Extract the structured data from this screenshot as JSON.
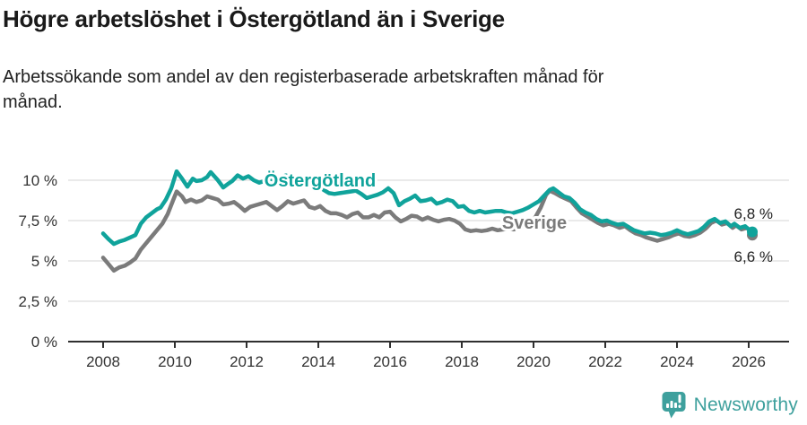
{
  "footer": {
    "brand": "Newsworthy",
    "brand_color": "#3EA09D",
    "logo_icon": "newsworthy-speech-bubble-bar-chart-icon"
  },
  "chart_data": {
    "type": "line",
    "title": "Högre arbetslöshet i Östergötland än i Sverige",
    "subtitle": "Arbetssökande som andel av den registerbaserade arbetskraften månad för månad.",
    "grid": "horizontal",
    "style": {
      "teal": "#10A39B",
      "gray": "#7B7B7B",
      "grid_color": "#E3E3E3",
      "axis_color": "#2F2F2F",
      "tick_text_color": "#333333",
      "end_label_color": "#222222"
    },
    "x_axis": {
      "ticks": [
        2008,
        2010,
        2012,
        2014,
        2016,
        2018,
        2020,
        2022,
        2024,
        2026
      ],
      "tick_labels": [
        "2008",
        "2010",
        "2012",
        "2014",
        "2016",
        "2018",
        "2020",
        "2022",
        "2024",
        "2026"
      ],
      "range": [
        2007.0,
        2027.1
      ]
    },
    "y_axis": {
      "ticks": [
        0,
        2.5,
        5,
        7.5,
        10
      ],
      "tick_labels": [
        "0 %",
        "2,5 %",
        "5 %",
        "7,5 %",
        "10 %"
      ],
      "range": [
        0,
        12.7
      ]
    },
    "series": [
      {
        "key": "sverige",
        "name": "Sverige",
        "color": "#7B7B7B",
        "end_label": "6,6 %",
        "points": [
          [
            2008.0,
            5.2
          ],
          [
            2008.15,
            4.8
          ],
          [
            2008.3,
            4.4
          ],
          [
            2008.45,
            4.6
          ],
          [
            2008.6,
            4.7
          ],
          [
            2008.75,
            4.9
          ],
          [
            2008.9,
            5.15
          ],
          [
            2009.05,
            5.7
          ],
          [
            2009.2,
            6.1
          ],
          [
            2009.35,
            6.5
          ],
          [
            2009.5,
            6.9
          ],
          [
            2009.65,
            7.3
          ],
          [
            2009.8,
            7.9
          ],
          [
            2009.95,
            8.75
          ],
          [
            2010.05,
            9.3
          ],
          [
            2010.2,
            9.0
          ],
          [
            2010.3,
            8.65
          ],
          [
            2010.45,
            8.8
          ],
          [
            2010.6,
            8.65
          ],
          [
            2010.75,
            8.75
          ],
          [
            2010.9,
            9.0
          ],
          [
            2011.05,
            8.9
          ],
          [
            2011.2,
            8.8
          ],
          [
            2011.35,
            8.5
          ],
          [
            2011.5,
            8.55
          ],
          [
            2011.65,
            8.65
          ],
          [
            2011.8,
            8.4
          ],
          [
            2011.95,
            8.1
          ],
          [
            2012.1,
            8.35
          ],
          [
            2012.25,
            8.45
          ],
          [
            2012.4,
            8.55
          ],
          [
            2012.55,
            8.65
          ],
          [
            2012.7,
            8.4
          ],
          [
            2012.85,
            8.15
          ],
          [
            2013.0,
            8.4
          ],
          [
            2013.15,
            8.7
          ],
          [
            2013.3,
            8.55
          ],
          [
            2013.45,
            8.65
          ],
          [
            2013.6,
            8.75
          ],
          [
            2013.75,
            8.35
          ],
          [
            2013.9,
            8.25
          ],
          [
            2014.05,
            8.4
          ],
          [
            2014.2,
            8.1
          ],
          [
            2014.35,
            7.95
          ],
          [
            2014.5,
            7.95
          ],
          [
            2014.65,
            7.85
          ],
          [
            2014.8,
            7.7
          ],
          [
            2014.95,
            7.9
          ],
          [
            2015.1,
            8.0
          ],
          [
            2015.25,
            7.7
          ],
          [
            2015.4,
            7.7
          ],
          [
            2015.55,
            7.85
          ],
          [
            2015.7,
            7.7
          ],
          [
            2015.85,
            8.0
          ],
          [
            2016.0,
            8.05
          ],
          [
            2016.15,
            7.7
          ],
          [
            2016.3,
            7.45
          ],
          [
            2016.45,
            7.6
          ],
          [
            2016.6,
            7.8
          ],
          [
            2016.75,
            7.75
          ],
          [
            2016.9,
            7.55
          ],
          [
            2017.05,
            7.7
          ],
          [
            2017.2,
            7.55
          ],
          [
            2017.35,
            7.45
          ],
          [
            2017.5,
            7.55
          ],
          [
            2017.65,
            7.6
          ],
          [
            2017.8,
            7.5
          ],
          [
            2017.95,
            7.3
          ],
          [
            2018.1,
            6.95
          ],
          [
            2018.25,
            6.85
          ],
          [
            2018.4,
            6.9
          ],
          [
            2018.55,
            6.85
          ],
          [
            2018.7,
            6.9
          ],
          [
            2018.85,
            7.0
          ],
          [
            2019.0,
            6.9
          ],
          [
            2019.15,
            6.95
          ],
          [
            2019.3,
            7.0
          ],
          [
            2019.45,
            6.95
          ],
          [
            2019.6,
            7.05
          ],
          [
            2019.75,
            7.15
          ],
          [
            2019.9,
            7.35
          ],
          [
            2020.05,
            7.7
          ],
          [
            2020.2,
            8.3
          ],
          [
            2020.35,
            9.1
          ],
          [
            2020.45,
            9.35
          ],
          [
            2020.6,
            9.2
          ],
          [
            2020.75,
            9.0
          ],
          [
            2020.9,
            8.85
          ],
          [
            2021.05,
            8.7
          ],
          [
            2021.2,
            8.3
          ],
          [
            2021.35,
            7.95
          ],
          [
            2021.5,
            7.75
          ],
          [
            2021.65,
            7.55
          ],
          [
            2021.8,
            7.35
          ],
          [
            2021.95,
            7.2
          ],
          [
            2022.1,
            7.3
          ],
          [
            2022.25,
            7.2
          ],
          [
            2022.4,
            7.05
          ],
          [
            2022.55,
            7.15
          ],
          [
            2022.7,
            6.9
          ],
          [
            2022.85,
            6.7
          ],
          [
            2023.0,
            6.6
          ],
          [
            2023.15,
            6.45
          ],
          [
            2023.3,
            6.35
          ],
          [
            2023.45,
            6.25
          ],
          [
            2023.6,
            6.35
          ],
          [
            2023.75,
            6.45
          ],
          [
            2023.9,
            6.6
          ],
          [
            2024.05,
            6.7
          ],
          [
            2024.2,
            6.55
          ],
          [
            2024.35,
            6.5
          ],
          [
            2024.5,
            6.6
          ],
          [
            2024.65,
            6.75
          ],
          [
            2024.8,
            7.0
          ],
          [
            2024.95,
            7.35
          ],
          [
            2025.1,
            7.5
          ],
          [
            2025.25,
            7.25
          ],
          [
            2025.4,
            7.35
          ],
          [
            2025.55,
            7.05
          ],
          [
            2025.65,
            7.2
          ],
          [
            2025.8,
            6.95
          ],
          [
            2025.95,
            7.05
          ],
          [
            2026.05,
            6.85
          ],
          [
            2026.1,
            6.6
          ]
        ]
      },
      {
        "key": "ostergotland",
        "name": "Östergötland",
        "color": "#10A39B",
        "end_label": "6,8 %",
        "points": [
          [
            2008.0,
            6.7
          ],
          [
            2008.15,
            6.35
          ],
          [
            2008.3,
            6.05
          ],
          [
            2008.45,
            6.2
          ],
          [
            2008.6,
            6.3
          ],
          [
            2008.75,
            6.45
          ],
          [
            2008.9,
            6.6
          ],
          [
            2009.05,
            7.3
          ],
          [
            2009.2,
            7.7
          ],
          [
            2009.35,
            7.95
          ],
          [
            2009.5,
            8.2
          ],
          [
            2009.6,
            8.3
          ],
          [
            2009.75,
            8.8
          ],
          [
            2009.9,
            9.5
          ],
          [
            2010.05,
            10.55
          ],
          [
            2010.2,
            10.1
          ],
          [
            2010.35,
            9.6
          ],
          [
            2010.5,
            10.1
          ],
          [
            2010.6,
            9.95
          ],
          [
            2010.75,
            10.0
          ],
          [
            2010.9,
            10.2
          ],
          [
            2011.0,
            10.5
          ],
          [
            2011.2,
            10.0
          ],
          [
            2011.35,
            9.55
          ],
          [
            2011.5,
            9.8
          ],
          [
            2011.6,
            9.95
          ],
          [
            2011.75,
            10.3
          ],
          [
            2011.9,
            10.1
          ],
          [
            2012.05,
            10.25
          ],
          [
            2012.2,
            10.0
          ],
          [
            2012.35,
            9.85
          ],
          [
            2012.5,
            9.95
          ],
          [
            2012.65,
            10.1
          ],
          [
            2012.8,
            10.0
          ],
          [
            2012.95,
            10.2
          ],
          [
            2013.1,
            10.3
          ],
          [
            2013.25,
            10.05
          ],
          [
            2013.4,
            9.95
          ],
          [
            2013.55,
            10.05
          ],
          [
            2013.7,
            9.95
          ],
          [
            2013.85,
            9.8
          ],
          [
            2014.0,
            9.65
          ],
          [
            2014.15,
            9.4
          ],
          [
            2014.3,
            9.2
          ],
          [
            2014.45,
            9.15
          ],
          [
            2014.6,
            9.2
          ],
          [
            2014.75,
            9.25
          ],
          [
            2014.9,
            9.3
          ],
          [
            2015.05,
            9.35
          ],
          [
            2015.2,
            9.15
          ],
          [
            2015.35,
            8.9
          ],
          [
            2015.5,
            9.0
          ],
          [
            2015.65,
            9.1
          ],
          [
            2015.8,
            9.25
          ],
          [
            2015.95,
            9.5
          ],
          [
            2016.1,
            9.2
          ],
          [
            2016.25,
            8.45
          ],
          [
            2016.4,
            8.7
          ],
          [
            2016.55,
            8.85
          ],
          [
            2016.7,
            9.05
          ],
          [
            2016.85,
            8.7
          ],
          [
            2017.0,
            8.75
          ],
          [
            2017.15,
            8.85
          ],
          [
            2017.3,
            8.55
          ],
          [
            2017.45,
            8.65
          ],
          [
            2017.6,
            8.8
          ],
          [
            2017.75,
            8.7
          ],
          [
            2017.9,
            8.35
          ],
          [
            2018.05,
            8.4
          ],
          [
            2018.2,
            8.1
          ],
          [
            2018.35,
            8.0
          ],
          [
            2018.5,
            8.1
          ],
          [
            2018.65,
            8.0
          ],
          [
            2018.8,
            8.05
          ],
          [
            2018.95,
            8.1
          ],
          [
            2019.1,
            8.1
          ],
          [
            2019.25,
            8.0
          ],
          [
            2019.4,
            7.95
          ],
          [
            2019.55,
            8.05
          ],
          [
            2019.7,
            8.15
          ],
          [
            2019.85,
            8.3
          ],
          [
            2020.0,
            8.5
          ],
          [
            2020.15,
            8.7
          ],
          [
            2020.3,
            9.05
          ],
          [
            2020.45,
            9.4
          ],
          [
            2020.55,
            9.5
          ],
          [
            2020.7,
            9.25
          ],
          [
            2020.85,
            9.0
          ],
          [
            2021.0,
            8.9
          ],
          [
            2021.15,
            8.6
          ],
          [
            2021.3,
            8.2
          ],
          [
            2021.45,
            8.0
          ],
          [
            2021.6,
            7.85
          ],
          [
            2021.75,
            7.6
          ],
          [
            2021.9,
            7.45
          ],
          [
            2022.05,
            7.5
          ],
          [
            2022.2,
            7.35
          ],
          [
            2022.35,
            7.25
          ],
          [
            2022.5,
            7.3
          ],
          [
            2022.65,
            7.1
          ],
          [
            2022.8,
            6.9
          ],
          [
            2022.95,
            6.8
          ],
          [
            2023.1,
            6.7
          ],
          [
            2023.25,
            6.75
          ],
          [
            2023.4,
            6.7
          ],
          [
            2023.55,
            6.6
          ],
          [
            2023.7,
            6.65
          ],
          [
            2023.85,
            6.75
          ],
          [
            2024.0,
            6.9
          ],
          [
            2024.15,
            6.75
          ],
          [
            2024.3,
            6.65
          ],
          [
            2024.45,
            6.75
          ],
          [
            2024.6,
            6.85
          ],
          [
            2024.75,
            7.1
          ],
          [
            2024.9,
            7.45
          ],
          [
            2025.05,
            7.6
          ],
          [
            2025.2,
            7.35
          ],
          [
            2025.35,
            7.45
          ],
          [
            2025.5,
            7.15
          ],
          [
            2025.6,
            7.3
          ],
          [
            2025.75,
            7.05
          ],
          [
            2025.9,
            7.15
          ],
          [
            2026.0,
            6.95
          ],
          [
            2026.1,
            6.8
          ]
        ]
      }
    ]
  }
}
